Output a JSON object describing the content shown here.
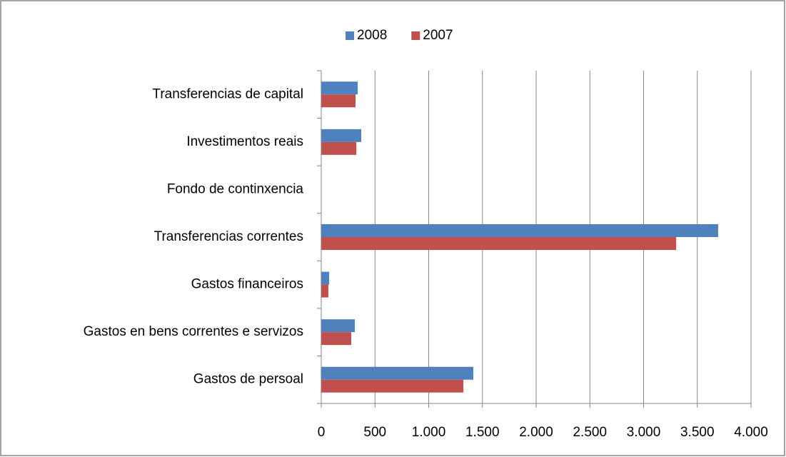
{
  "chart_data": {
    "type": "hbar",
    "categories": [
      "Transferencias de capital",
      "Investimentos reais",
      "Fondo de continxencia",
      "Transferencias correntes",
      "Gastos financeiros",
      "Gastos en bens correntes e servizos",
      "Gastos de persoal"
    ],
    "series": [
      {
        "name": "2008",
        "color": "#4f81bd",
        "values": [
          339,
          372,
          0,
          3694,
          73,
          312,
          1415
        ]
      },
      {
        "name": "2007",
        "color": "#c0504d",
        "values": [
          319,
          326,
          0,
          3302,
          66,
          279,
          1322
        ]
      }
    ],
    "xlim": [
      0,
      4000
    ],
    "xticks": [
      0,
      500,
      {
        "value": 1000,
        "label": "1.000"
      },
      {
        "value": 1500,
        "label": "1.500"
      },
      {
        "value": 2000,
        "label": "2.000"
      },
      {
        "value": 2500,
        "label": "2.500"
      },
      {
        "value": 3000,
        "label": "3.000"
      },
      {
        "value": 3500,
        "label": "3.500"
      },
      {
        "value": 4000,
        "label": "4.000"
      }
    ],
    "grid": true,
    "legend": "top"
  }
}
